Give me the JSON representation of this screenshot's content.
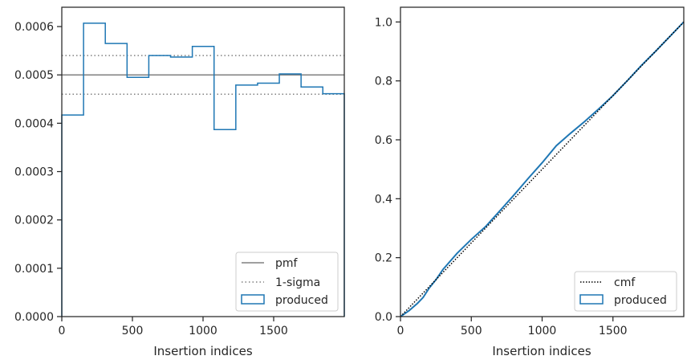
{
  "colors": {
    "produced": "#1f77b4",
    "pmf": "#808080",
    "sigma": "#808080",
    "cmf": "#000000",
    "axis": "#262626"
  },
  "chart_data": [
    {
      "type": "step-histogram",
      "xlabel": "Insertion indices",
      "ylabel": "",
      "xlim": [
        0,
        2000
      ],
      "ylim": [
        0,
        0.00064
      ],
      "xticks": [
        0,
        500,
        1000,
        1500
      ],
      "yticks": [
        "0.0000",
        "0.0001",
        "0.0002",
        "0.0003",
        "0.0004",
        "0.0005",
        "0.0006"
      ],
      "ytick_values": [
        0,
        0.0001,
        0.0002,
        0.0003,
        0.0004,
        0.0005,
        0.0006
      ],
      "pmf": 0.0005,
      "sigma_low": 0.00046,
      "sigma_high": 0.00054,
      "bin_edges": [
        0,
        154,
        308,
        462,
        616,
        770,
        924,
        1078,
        1232,
        1386,
        1540,
        1694,
        1848,
        2000
      ],
      "produced": [
        0.000417,
        0.000607,
        0.000565,
        0.000495,
        0.00054,
        0.000537,
        0.000559,
        0.000387,
        0.000479,
        0.000483,
        0.000502,
        0.000475,
        0.000461
      ],
      "legend": {
        "placement": "lower-right",
        "pmf": "pmf",
        "sigma": "1-sigma",
        "produced": "produced"
      }
    },
    {
      "type": "line",
      "xlabel": "Insertion indices",
      "ylabel": "",
      "xlim": [
        0,
        2000
      ],
      "ylim": [
        0,
        1.05
      ],
      "xticks": [
        0,
        500,
        1000,
        1500
      ],
      "yticks": [
        "0.0",
        "0.2",
        "0.4",
        "0.6",
        "0.8",
        "1.0"
      ],
      "ytick_values": [
        0,
        0.2,
        0.4,
        0.6,
        0.8,
        1.0
      ],
      "cmf": {
        "x": [
          0,
          2000
        ],
        "y": [
          0,
          1.0
        ]
      },
      "produced": {
        "x": [
          0,
          60,
          120,
          160,
          200,
          250,
          300,
          400,
          500,
          600,
          700,
          800,
          900,
          1000,
          1100,
          1200,
          1300,
          1400,
          1500,
          1600,
          1700,
          1800,
          1900,
          2000
        ],
        "y": [
          0,
          0.02,
          0.045,
          0.065,
          0.095,
          0.125,
          0.16,
          0.215,
          0.262,
          0.305,
          0.358,
          0.412,
          0.468,
          0.522,
          0.58,
          0.622,
          0.662,
          0.705,
          0.75,
          0.8,
          0.852,
          0.9,
          0.95,
          1.0
        ]
      },
      "legend": {
        "placement": "lower-right",
        "cmf": "cmf",
        "produced": "produced"
      }
    }
  ]
}
